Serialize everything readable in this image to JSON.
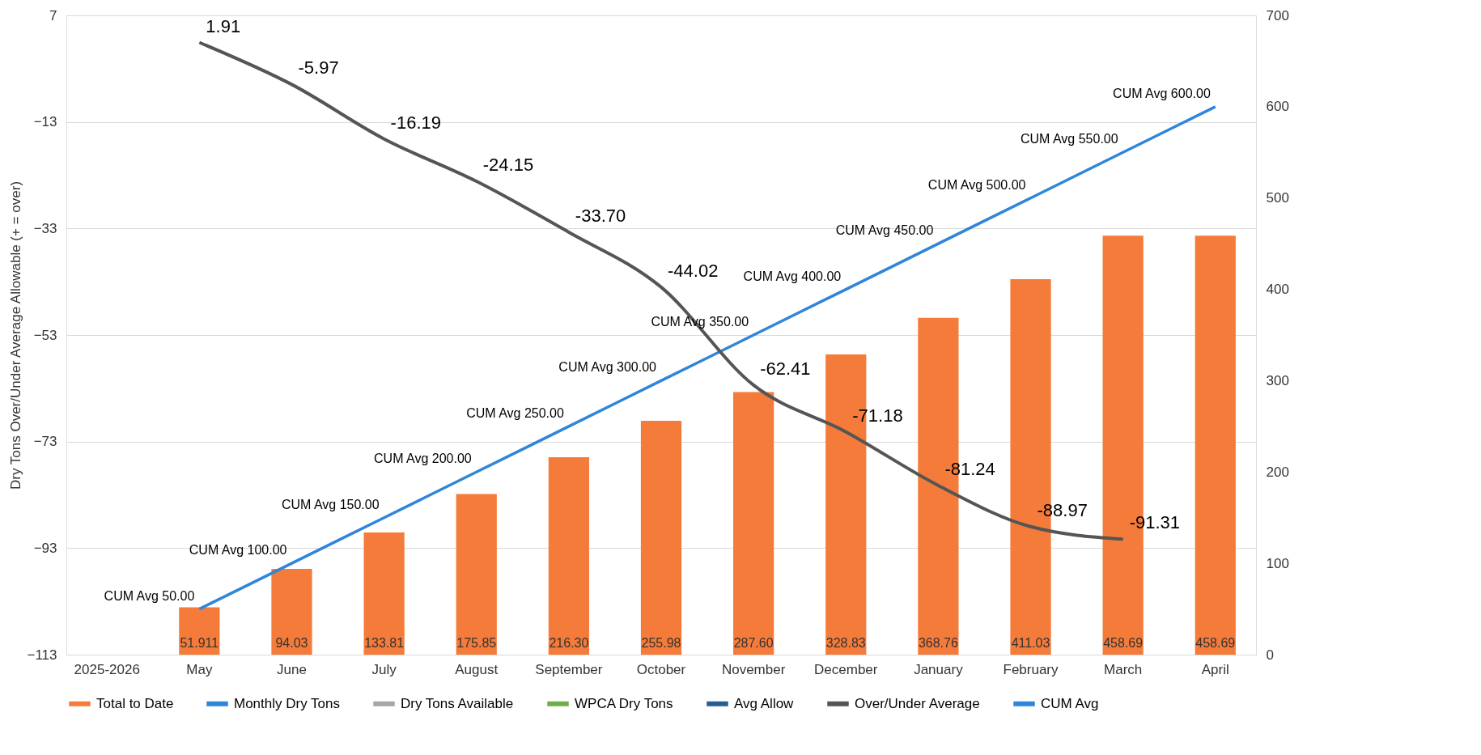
{
  "chart_data": {
    "type": "bar",
    "ylabel": "Dry Tons Over/Under Average Allowable (+ = over)",
    "categories": [
      "2025-2026",
      "May",
      "June",
      "July",
      "August",
      "September",
      "October",
      "November",
      "December",
      "January",
      "February",
      "March",
      "April"
    ],
    "series": [
      {
        "name": "Total to Date",
        "axis": "y2",
        "color": "#f47b3a",
        "values": [
          null,
          51.911,
          94.03,
          133.81,
          175.85,
          216.3,
          255.98,
          287.6,
          328.83,
          368.76,
          411.03,
          458.69,
          458.69
        ],
        "value_labels": [
          null,
          "51.911",
          "94.03",
          "133.81",
          "175.85",
          "216.30",
          "255.98",
          "287.60",
          "328.83",
          "368.76",
          "411.03",
          "458.69",
          "458.69"
        ]
      },
      {
        "name": "Monthly Dry Tons",
        "type": "line",
        "axis": "y2",
        "color": "#2f86d8",
        "values": [
          null,
          null,
          null,
          null,
          null,
          null,
          null,
          null,
          null,
          null,
          null,
          null,
          null
        ]
      },
      {
        "name": "Dry Tons Available",
        "type": "line",
        "axis": "y2",
        "color": "#a6a6a6",
        "values": [
          null,
          null,
          null,
          null,
          null,
          null,
          null,
          null,
          null,
          null,
          null,
          null,
          null
        ]
      },
      {
        "name": "WPCA Dry Tons",
        "type": "line",
        "axis": "y2",
        "color": "#70ad47",
        "values": [
          null,
          null,
          null,
          null,
          null,
          null,
          null,
          null,
          null,
          null,
          null,
          null,
          null
        ]
      },
      {
        "name": "Avg Allow",
        "type": "line",
        "axis": "y2",
        "color": "#255e91",
        "values": [
          null,
          null,
          null,
          null,
          null,
          null,
          null,
          null,
          null,
          null,
          null,
          null,
          null
        ]
      },
      {
        "name": "Over/Under Average",
        "type": "line",
        "axis": "y",
        "color": "#555555",
        "values": [
          null,
          1.91,
          -5.97,
          -16.19,
          -24.15,
          -33.7,
          -44.02,
          -62.41,
          -71.18,
          -81.24,
          -88.97,
          -91.31,
          null
        ],
        "value_labels": [
          null,
          "1.91",
          "-5.97",
          "-16.19",
          "-24.15",
          "-33.70",
          "-44.02",
          "-62.41",
          "-71.18",
          "-81.24",
          "-88.97",
          "-91.31",
          null
        ]
      },
      {
        "name": "CUM Avg",
        "type": "line",
        "axis": "y2",
        "color": "#2f86d8",
        "values": [
          null,
          50,
          100,
          150,
          200,
          250,
          300,
          350,
          400,
          450,
          500,
          550,
          600
        ],
        "value_labels": [
          null,
          "CUM Avg 50.00",
          "CUM Avg 100.00",
          "CUM Avg 150.00",
          "CUM Avg 200.00",
          "CUM Avg 250.00",
          "CUM Avg 300.00",
          "CUM Avg 350.00",
          "CUM Avg 400.00",
          "CUM Avg 450.00",
          "CUM Avg 500.00",
          "CUM Avg 550.00",
          "CUM Avg 600.00"
        ]
      }
    ],
    "ylim": [
      -113,
      7
    ],
    "yticks": [
      7,
      -13,
      -33,
      -53,
      -73,
      -93,
      -113
    ],
    "y2lim": [
      0,
      700
    ],
    "y2ticks": [
      0,
      100,
      200,
      300,
      400,
      500,
      600,
      700
    ],
    "grid": "y",
    "legend": "bottom",
    "marker": "none",
    "line_style": "solid"
  }
}
